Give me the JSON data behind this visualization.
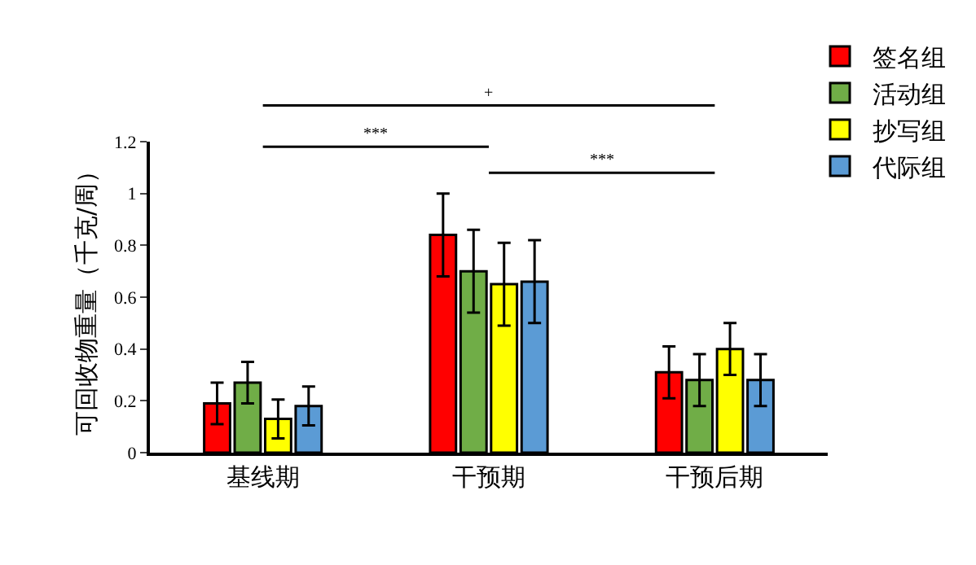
{
  "chart_data": {
    "type": "bar",
    "ylabel": "可回收物重量（千克/周）",
    "categories": [
      "基线期",
      "干预期",
      "干预后期"
    ],
    "series": [
      {
        "name": "签名组",
        "color": "#ff0000",
        "values": [
          0.19,
          0.84,
          0.31
        ],
        "errors": [
          0.08,
          0.16,
          0.1
        ]
      },
      {
        "name": "活动组",
        "color": "#70ad47",
        "values": [
          0.27,
          0.7,
          0.28
        ],
        "errors": [
          0.08,
          0.16,
          0.1
        ]
      },
      {
        "name": "抄写组",
        "color": "#ffff00",
        "values": [
          0.13,
          0.65,
          0.4
        ],
        "errors": [
          0.075,
          0.16,
          0.1
        ]
      },
      {
        "name": "代际组",
        "color": "#5b9bd5",
        "values": [
          0.18,
          0.66,
          0.28
        ],
        "errors": [
          0.075,
          0.16,
          0.1
        ]
      }
    ],
    "ylim": [
      0,
      1.2
    ],
    "yticks": [
      0,
      0.2,
      0.4,
      0.6,
      0.8,
      1,
      1.2
    ],
    "grid": false,
    "legend": "top right",
    "annotations": [
      "+",
      "***",
      "***"
    ]
  }
}
